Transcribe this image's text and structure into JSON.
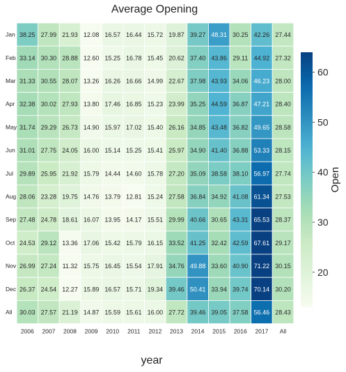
{
  "chart_data": {
    "type": "heatmap",
    "title": "Average Opening",
    "xlabel": "year",
    "ylabel": "",
    "colorbar_label": "Open",
    "colormap": "GnBu",
    "color_range": [
      13,
      64
    ],
    "colorbar_ticks": [
      20,
      30,
      40,
      50,
      60
    ],
    "columns": [
      "2006",
      "2007",
      "2008",
      "2009",
      "2010",
      "2011",
      "2012",
      "2013",
      "2014",
      "2015",
      "2016",
      "2017",
      "All"
    ],
    "rows": [
      "Jan",
      "Feb",
      "Mar",
      "Apr",
      "May",
      "Jun",
      "Jul",
      "Aug",
      "Sep",
      "Oct",
      "Nov",
      "Dec",
      "All"
    ],
    "values": [
      [
        "38.25",
        "27.99",
        "21.93",
        "12.08",
        "16.57",
        "16.44",
        "15.72",
        "19.87",
        "39.27",
        "48.31",
        "30.25",
        "42.26",
        "27.44"
      ],
      [
        "33.14",
        "30.30",
        "28.88",
        "12.60",
        "15.25",
        "16.78",
        "15.45",
        "20.62",
        "37.40",
        "43.86",
        "29.11",
        "44.92",
        "27.32"
      ],
      [
        "31.33",
        "30.55",
        "28.07",
        "13.26",
        "16.26",
        "16.66",
        "14.99",
        "22.67",
        "37.98",
        "43.93",
        "34.06",
        "46.23",
        "28.00"
      ],
      [
        "32.38",
        "30.02",
        "27.93",
        "13.80",
        "17.46",
        "16.85",
        "15.23",
        "23.99",
        "35.25",
        "44.59",
        "36.87",
        "47.21",
        "28.40"
      ],
      [
        "31.74",
        "29.29",
        "26.73",
        "14.90",
        "15.97",
        "17.02",
        "15.40",
        "26.16",
        "34.85",
        "43.48",
        "36.82",
        "49.65",
        "28.58"
      ],
      [
        "31.01",
        "27.75",
        "24.05",
        "16.00",
        "15.14",
        "15.25",
        "15.41",
        "25.97",
        "34.90",
        "41.40",
        "36.88",
        "53.33",
        "28.15"
      ],
      [
        "29.89",
        "25.95",
        "21.92",
        "15.79",
        "14.44",
        "14.60",
        "15.78",
        "27.20",
        "35.09",
        "38.58",
        "38.10",
        "56.97",
        "27.74"
      ],
      [
        "28.06",
        "23.28",
        "19.75",
        "14.76",
        "13.79",
        "12.81",
        "15.24",
        "27.58",
        "36.84",
        "34.92",
        "41.08",
        "61.34",
        "27.53"
      ],
      [
        "27.48",
        "24.78",
        "18.61",
        "16.07",
        "13.95",
        "14.17",
        "15.51",
        "29.99",
        "40.66",
        "30.65",
        "43.31",
        "65.53",
        "28.37"
      ],
      [
        "24.53",
        "29.12",
        "13.36",
        "17.06",
        "15.42",
        "15.79",
        "16.15",
        "33.52",
        "41.25",
        "32.42",
        "42.59",
        "67.61",
        "29.17"
      ],
      [
        "26.99",
        "27.24",
        "11.32",
        "15.75",
        "16.45",
        "15.54",
        "17.91",
        "34.76",
        "49.88",
        "33.60",
        "40.90",
        "71.22",
        "30.15"
      ],
      [
        "26.37",
        "24.54",
        "12.27",
        "15.89",
        "16.57",
        "15.71",
        "19.34",
        "39.46",
        "50.41",
        "33.94",
        "39.74",
        "70.14",
        "30.20"
      ],
      [
        "30.03",
        "27.57",
        "21.19",
        "14.87",
        "15.59",
        "15.61",
        "16.00",
        "27.72",
        "39.46",
        "39.05",
        "37.58",
        "56.46",
        "28.43"
      ]
    ]
  }
}
